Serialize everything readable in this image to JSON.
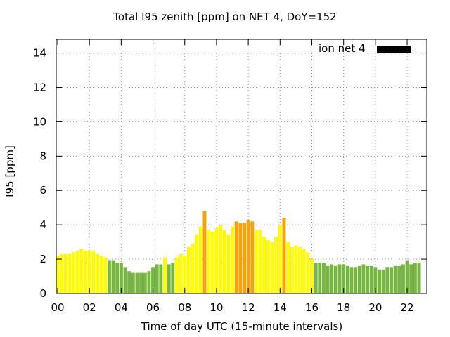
{
  "chart_data": {
    "type": "bar",
    "title": "Total I95 zenith [ppm] on NET 4, DoY=152",
    "xlabel": "Time of day UTC (15-minute intervals)",
    "ylabel": "I95 [ppm]",
    "legend": {
      "label": "ion net 4",
      "placement": "top-right"
    },
    "xlim": [
      0,
      22.75
    ],
    "ylim": [
      0,
      14.8
    ],
    "x_ticks": [
      0,
      2,
      4,
      6,
      8,
      10,
      12,
      14,
      16,
      18,
      20,
      22
    ],
    "x_tick_labels": [
      "00",
      "02",
      "04",
      "06",
      "08",
      "10",
      "12",
      "14",
      "16",
      "18",
      "20",
      "22"
    ],
    "y_ticks": [
      0,
      2,
      4,
      6,
      8,
      10,
      12,
      14
    ],
    "y_tick_labels": [
      "0",
      "2",
      "4",
      "6",
      "8",
      "10",
      "12",
      "14"
    ],
    "grid": true,
    "bar_width_hours": 0.22,
    "colors": {
      "green": "#77b741",
      "yellow": "#fff90a",
      "orange": "#f5a20f"
    },
    "x": [
      0,
      0.25,
      0.5,
      0.75,
      1,
      1.25,
      1.5,
      1.75,
      2,
      2.25,
      2.5,
      2.75,
      3,
      3.25,
      3.5,
      3.75,
      4,
      4.25,
      4.5,
      4.75,
      5,
      5.25,
      5.5,
      5.75,
      6,
      6.25,
      6.5,
      6.75,
      7,
      7.25,
      7.5,
      7.75,
      8,
      8.25,
      8.5,
      8.75,
      9,
      9.25,
      9.5,
      9.75,
      10,
      10.25,
      10.5,
      10.75,
      11,
      11.25,
      11.5,
      11.75,
      12,
      12.25,
      12.5,
      12.75,
      13,
      13.25,
      13.5,
      13.75,
      14,
      14.25,
      14.5,
      14.75,
      15,
      15.25,
      15.5,
      15.75,
      16,
      16.25,
      16.5,
      16.75,
      17,
      17.25,
      17.5,
      17.75,
      18,
      18.25,
      18.5,
      18.75,
      19,
      19.25,
      19.5,
      19.75,
      20,
      20.25,
      20.5,
      20.75,
      21,
      21.25,
      21.5,
      21.75,
      22,
      22.25,
      22.5,
      22.75
    ],
    "values": [
      2.2,
      2.3,
      2.3,
      2.3,
      2.4,
      2.5,
      2.6,
      2.5,
      2.5,
      2.5,
      2.3,
      2.2,
      2.1,
      1.9,
      1.9,
      1.8,
      1.8,
      1.5,
      1.3,
      1.2,
      1.2,
      1.2,
      1.2,
      1.3,
      1.5,
      1.7,
      1.7,
      2.1,
      1.7,
      1.8,
      2.1,
      2.3,
      2.2,
      2.7,
      2.9,
      3.4,
      3.9,
      4.8,
      3.7,
      3.6,
      3.8,
      4.0,
      3.7,
      3.4,
      3.9,
      4.2,
      4.1,
      4.1,
      4.3,
      4.2,
      3.7,
      3.7,
      3.3,
      3.1,
      3.0,
      3.3,
      4.0,
      4.4,
      3.0,
      2.7,
      2.8,
      2.7,
      2.6,
      2.4,
      2.0,
      1.8,
      1.8,
      1.8,
      1.6,
      1.7,
      1.6,
      1.7,
      1.7,
      1.6,
      1.5,
      1.5,
      1.6,
      1.7,
      1.6,
      1.6,
      1.5,
      1.4,
      1.4,
      1.5,
      1.5,
      1.6,
      1.6,
      1.7,
      1.9,
      1.7,
      1.8,
      1.8
    ],
    "bar_colors": [
      "yellow",
      "yellow",
      "yellow",
      "yellow",
      "yellow",
      "yellow",
      "yellow",
      "yellow",
      "yellow",
      "yellow",
      "yellow",
      "yellow",
      "yellow",
      "green",
      "green",
      "green",
      "green",
      "green",
      "green",
      "green",
      "green",
      "green",
      "green",
      "green",
      "green",
      "green",
      "green",
      "yellow",
      "green",
      "green",
      "yellow",
      "yellow",
      "yellow",
      "yellow",
      "yellow",
      "yellow",
      "yellow",
      "orange",
      "yellow",
      "yellow",
      "yellow",
      "yellow",
      "yellow",
      "yellow",
      "yellow",
      "orange",
      "orange",
      "orange",
      "orange",
      "orange",
      "yellow",
      "yellow",
      "yellow",
      "yellow",
      "yellow",
      "yellow",
      "yellow",
      "orange",
      "yellow",
      "yellow",
      "yellow",
      "yellow",
      "yellow",
      "yellow",
      "yellow",
      "green",
      "green",
      "green",
      "green",
      "green",
      "green",
      "green",
      "green",
      "green",
      "green",
      "green",
      "green",
      "green",
      "green",
      "green",
      "green",
      "green",
      "green",
      "green",
      "green",
      "green",
      "green",
      "green",
      "green",
      "green",
      "green",
      "green"
    ]
  }
}
